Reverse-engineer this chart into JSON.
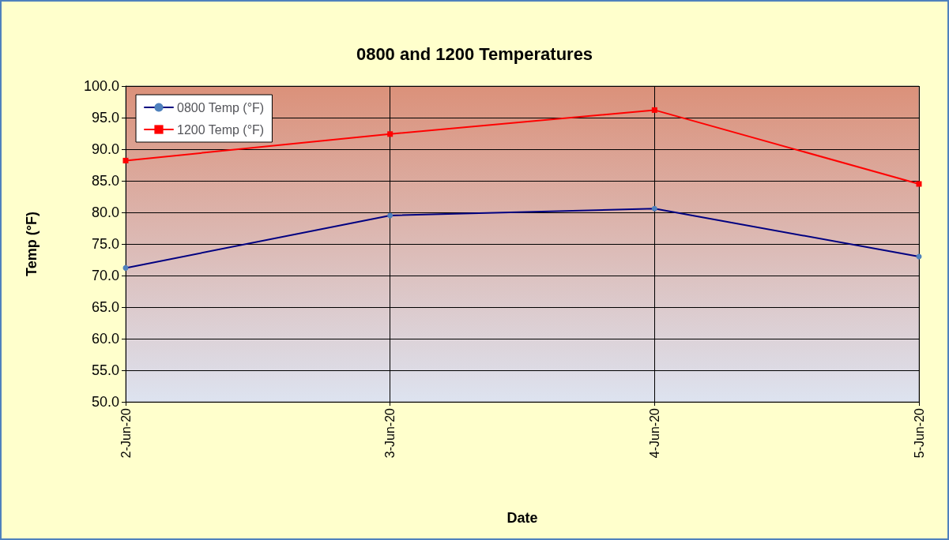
{
  "chart_data": {
    "type": "line",
    "title": "0800 and 1200 Temperatures",
    "xlabel": "Date",
    "ylabel": "Temp (°F)",
    "categories": [
      "2-Jun-20",
      "3-Jun-20",
      "4-Jun-20",
      "5-Jun-20"
    ],
    "series": [
      {
        "name": "0800 Temp (°F)",
        "color": "#000080",
        "marker": "circle",
        "values": [
          71.2,
          79.5,
          80.6,
          73.0
        ]
      },
      {
        "name": "1200 Temp (°F)",
        "color": "#ff0000",
        "marker": "square",
        "values": [
          88.2,
          92.4,
          96.2,
          84.5
        ]
      }
    ],
    "ylim": [
      50,
      100
    ],
    "yticks": [
      {
        "value": 50,
        "label": "50.0"
      },
      {
        "value": 55,
        "label": "55.0"
      },
      {
        "value": 60,
        "label": "60.0"
      },
      {
        "value": 65,
        "label": "65.0"
      },
      {
        "value": 70,
        "label": "70.0"
      },
      {
        "value": 75,
        "label": "75.0"
      },
      {
        "value": 80,
        "label": "80.0"
      },
      {
        "value": 85,
        "label": "85.0"
      },
      {
        "value": 90,
        "label": "90.0"
      },
      {
        "value": 95,
        "label": "95.0"
      },
      {
        "value": 100,
        "label": "100.0"
      }
    ],
    "grid": true,
    "legend": "top left",
    "line_style": "solid"
  }
}
